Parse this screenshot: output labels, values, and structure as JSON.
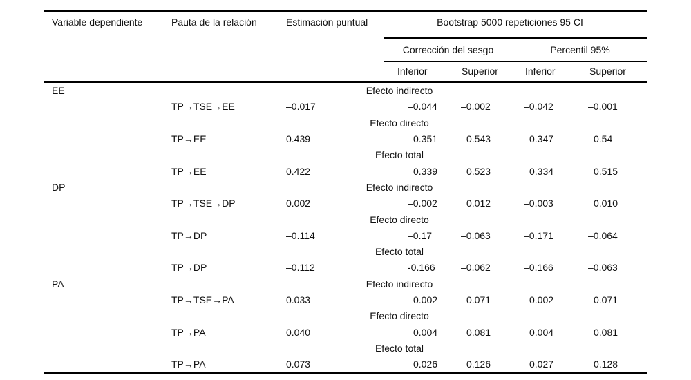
{
  "page": {
    "background_color": "#ffffff",
    "text_color": "#111111",
    "rule_color": "#000000"
  },
  "table": {
    "headers": {
      "col1": "Variable dependiente",
      "col2": "Pauta de la relación",
      "col3": "Estimación puntual",
      "bootstrap_group": "Bootstrap 5000 repeticiones 95 CI",
      "subgroup_bias": "Corrección del sesgo",
      "subgroup_percentile": "Percentil 95%",
      "ci_cols": [
        "Inferior",
        "Superior",
        "Inferior",
        "Superior"
      ]
    },
    "rows": [
      {
        "variable": "EE",
        "effect": "Efecto indirecto"
      },
      {
        "relation": "TP→TSE→EE",
        "estimate": "–0.017",
        "ci": [
          "–0.044",
          "–0.002",
          "–0.042",
          "–0.001"
        ]
      },
      {
        "effect": "Efecto directo"
      },
      {
        "relation": "TP→EE",
        "estimate": "0.439",
        "ci": [
          "0.351",
          "0.543",
          "0.347",
          "0.54"
        ]
      },
      {
        "effect": "Efecto total"
      },
      {
        "relation": "TP→EE",
        "estimate": "0.422",
        "ci": [
          "0.339",
          "0.523",
          "0.334",
          "0.515"
        ]
      },
      {
        "variable": "DP",
        "effect": "Efecto indirecto"
      },
      {
        "relation": "TP→TSE→DP",
        "estimate": "0.002",
        "ci": [
          "–0.002",
          "0.012",
          "–0.003",
          "0.010"
        ]
      },
      {
        "effect": "Efecto directo"
      },
      {
        "relation": "TP→DP",
        "estimate": "–0.114",
        "ci": [
          "–0.17",
          "–0.063",
          "–0.171",
          "–0.064"
        ]
      },
      {
        "effect": "Efecto total"
      },
      {
        "relation": "TP→DP",
        "estimate": "–0.112",
        "ci": [
          "-0.166",
          "–0.062",
          "–0.166",
          "–0.063"
        ]
      },
      {
        "variable": "PA",
        "effect": "Efecto indirecto"
      },
      {
        "relation": "TP→TSE→PA",
        "estimate": "0.033",
        "ci": [
          "0.002",
          "0.071",
          "0.002",
          "0.071"
        ]
      },
      {
        "effect": "Efecto directo"
      },
      {
        "relation": "TP→PA",
        "estimate": "0.040",
        "ci": [
          "0.004",
          "0.081",
          "0.004",
          "0.081"
        ]
      },
      {
        "effect": "Efecto total"
      },
      {
        "relation": "TP→PA",
        "estimate": "0.073",
        "ci": [
          "0.026",
          "0.126",
          "0.027",
          "0.128"
        ]
      }
    ]
  }
}
